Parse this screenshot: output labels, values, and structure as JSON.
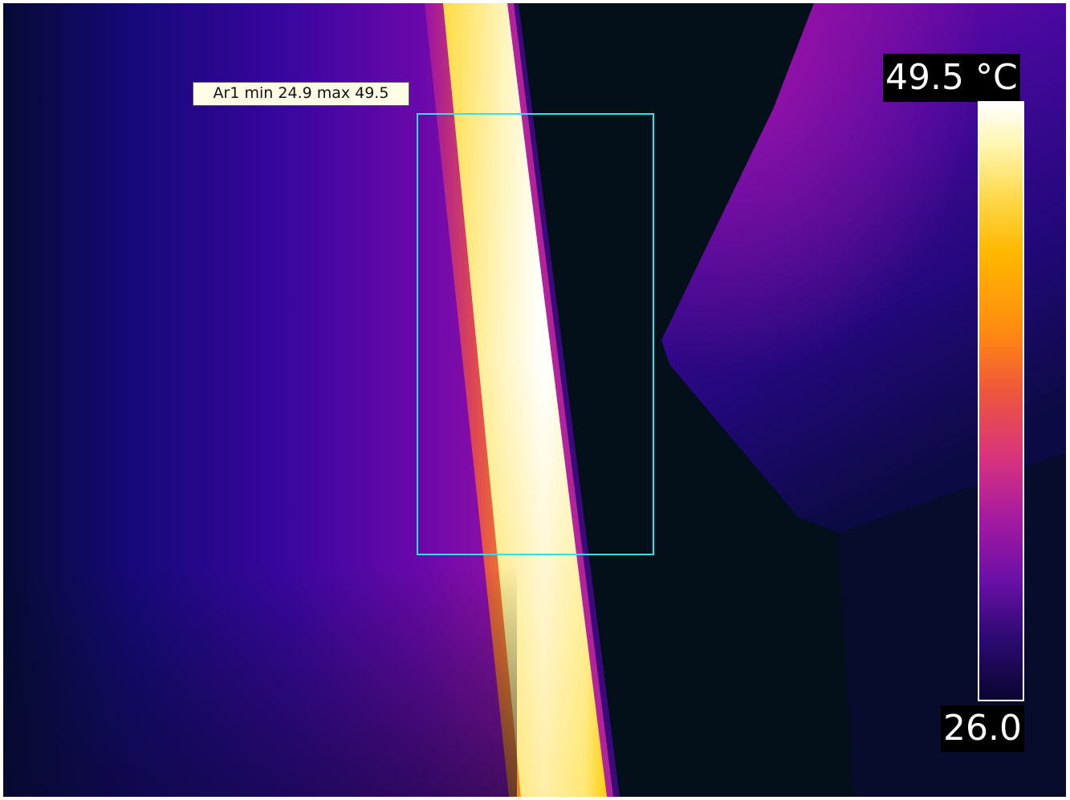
{
  "measurement": {
    "roi_label": "Ar1 min 24.9 max 49.5"
  },
  "scale": {
    "max_label": "49.5 °C",
    "min_label": "26.0"
  },
  "palette": {
    "name": "iron",
    "roi_color": "#35e0ec",
    "background": "#03101a"
  }
}
